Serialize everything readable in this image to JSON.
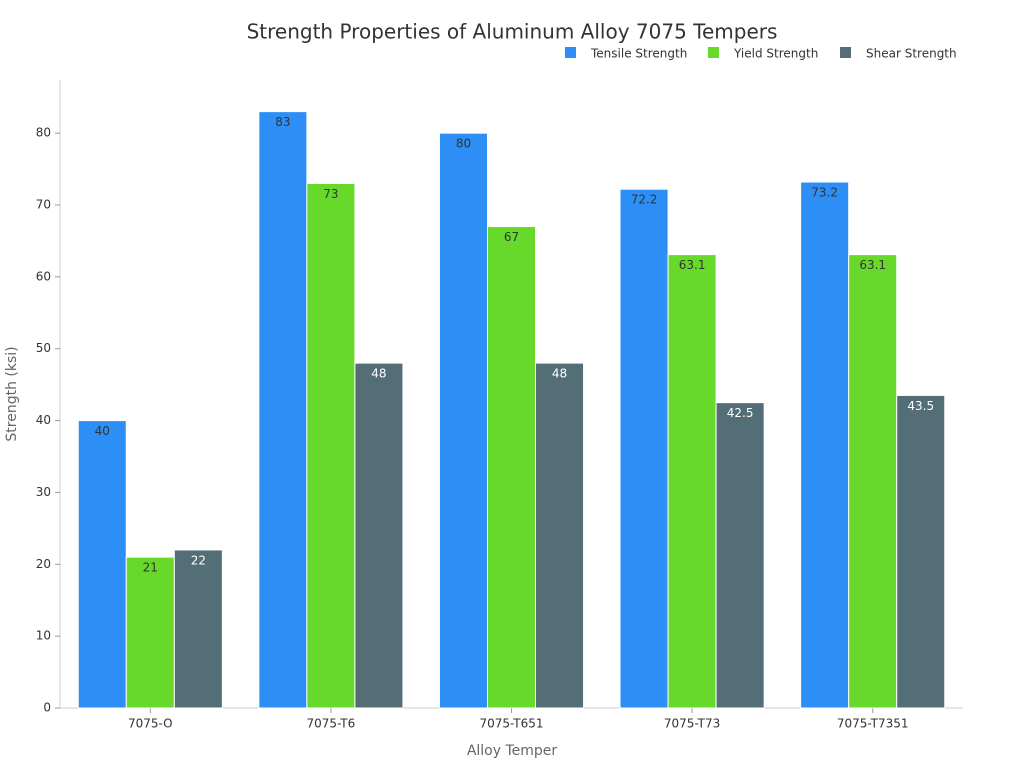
{
  "chart_data": {
    "type": "bar",
    "title": "Strength Properties of Aluminum Alloy 7075 Tempers",
    "x_label": "Alloy Temper",
    "y_label": "Strength (ksi)",
    "categories": [
      "7075-O",
      "7075-T6",
      "7075-T651",
      "7075-T73",
      "7075-T7351"
    ],
    "series": [
      {
        "name": "Tensile Strength",
        "color": "#2d8ff6",
        "values": [
          40,
          83,
          80,
          72.2,
          73.2
        ]
      },
      {
        "name": "Yield Strength",
        "color": "#66d92a",
        "values": [
          21,
          73,
          67,
          63.1,
          63.1
        ]
      },
      {
        "name": "Shear Strength",
        "color": "#546e78",
        "values": [
          22,
          48,
          48,
          42.5,
          43.5
        ]
      }
    ],
    "ylim": [
      0,
      87.4
    ],
    "yticks": [
      0,
      10,
      20,
      30,
      40,
      50,
      60,
      70,
      80
    ],
    "legend": "top-right"
  }
}
